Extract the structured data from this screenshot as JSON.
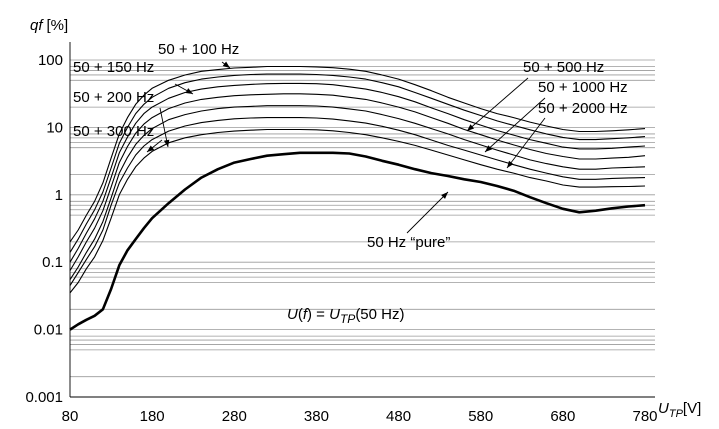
{
  "chart_data": {
    "type": "line",
    "y_log_scale": true,
    "grid": "horizontal log grid",
    "xlim": [
      80,
      780
    ],
    "ylim": [
      0.001,
      100
    ],
    "x_ticks": [
      "80",
      "180",
      "280",
      "380",
      "480",
      "580",
      "680",
      "780"
    ],
    "y_ticks": [
      "0.001",
      "0.01",
      "0.1",
      "1",
      "10",
      "100"
    ],
    "ylabel": {
      "main": "qf",
      "unit": "[%]"
    },
    "xlabel": {
      "main": "U",
      "sub": "TP",
      "unit": "[V]"
    },
    "annotation": {
      "U": "U",
      "f_open": "(",
      "f": "f",
      "f_close": ")",
      "eq": " = ",
      "U2": "U",
      "sub": "TP",
      "rest": "(50 Hz)"
    },
    "x": [
      80,
      90,
      100,
      110,
      120,
      130,
      140,
      150,
      160,
      170,
      180,
      200,
      220,
      240,
      260,
      280,
      300,
      320,
      340,
      360,
      380,
      400,
      420,
      440,
      460,
      480,
      500,
      520,
      540,
      560,
      580,
      600,
      620,
      640,
      660,
      680,
      700,
      720,
      740,
      760,
      780
    ],
    "series": [
      {
        "name": "50 + 100 Hz",
        "values": [
          0.2,
          0.3,
          0.5,
          0.8,
          1.5,
          3.5,
          8.0,
          14.0,
          22.0,
          30.0,
          38.0,
          50.0,
          60.0,
          68.0,
          72.0,
          76.0,
          78.0,
          80.0,
          80.0,
          80.0,
          79.0,
          77.0,
          73.0,
          68.0,
          60.0,
          52.0,
          43.0,
          35.0,
          28.0,
          23.0,
          19.0,
          16.0,
          14.0,
          12.0,
          10.5,
          9.3,
          8.7,
          8.7,
          8.9,
          9.2,
          9.6
        ]
      },
      {
        "name": "50 + 150 Hz",
        "values": [
          0.14,
          0.22,
          0.37,
          0.6,
          1.1,
          2.5,
          5.8,
          10.0,
          16.0,
          22.0,
          28.0,
          38.0,
          46.0,
          52.0,
          56.0,
          59.0,
          61.0,
          62.0,
          62.0,
          62.0,
          61.0,
          59.0,
          56.0,
          52.0,
          46.0,
          40.0,
          33.0,
          27.0,
          22.0,
          18.0,
          15.0,
          12.5,
          10.7,
          9.2,
          8.0,
          7.1,
          6.6,
          6.6,
          6.8,
          7.0,
          7.3
        ]
      },
      {
        "name": "50 + 200 Hz",
        "values": [
          0.1,
          0.16,
          0.27,
          0.44,
          0.8,
          1.8,
          4.2,
          7.2,
          11.5,
          16.0,
          20.0,
          27.0,
          33.0,
          37.0,
          40.0,
          42.0,
          43.5,
          44.5,
          45.0,
          45.0,
          44.5,
          43.0,
          40.0,
          37.0,
          33.0,
          28.5,
          24.0,
          19.5,
          16.0,
          13.0,
          10.8,
          9.0,
          7.7,
          6.6,
          5.8,
          5.1,
          4.8,
          4.8,
          4.9,
          5.1,
          5.3
        ]
      },
      {
        "name": "50 + 300 Hz",
        "values": [
          0.075,
          0.12,
          0.2,
          0.32,
          0.58,
          1.3,
          3.0,
          5.2,
          8.2,
          11.2,
          14.0,
          19.0,
          23.0,
          26.0,
          28.0,
          29.5,
          30.5,
          31.0,
          31.5,
          31.5,
          31.0,
          30.0,
          28.0,
          26.0,
          23.0,
          20.0,
          17.0,
          14.0,
          11.5,
          9.3,
          7.8,
          6.5,
          5.5,
          4.7,
          4.1,
          3.7,
          3.4,
          3.4,
          3.5,
          3.6,
          3.8
        ]
      },
      {
        "name": "50 + 500 Hz",
        "values": [
          0.055,
          0.085,
          0.14,
          0.22,
          0.4,
          0.9,
          2.1,
          3.6,
          5.6,
          7.6,
          9.6,
          13.0,
          15.5,
          17.5,
          19.0,
          20.0,
          20.5,
          21.0,
          21.0,
          21.0,
          20.8,
          20.0,
          18.8,
          17.5,
          15.5,
          13.5,
          11.5,
          9.6,
          8.0,
          6.6,
          5.5,
          4.6,
          3.9,
          3.3,
          2.9,
          2.6,
          2.4,
          2.4,
          2.5,
          2.55,
          2.6
        ]
      },
      {
        "name": "50 + 1000 Hz",
        "values": [
          0.045,
          0.07,
          0.11,
          0.17,
          0.3,
          0.7,
          1.5,
          2.5,
          3.9,
          5.3,
          6.6,
          8.8,
          10.5,
          11.8,
          12.7,
          13.4,
          13.8,
          14.0,
          14.0,
          14.0,
          13.8,
          13.3,
          12.5,
          11.6,
          10.4,
          9.1,
          7.8,
          6.5,
          5.4,
          4.6,
          3.9,
          3.3,
          2.8,
          2.4,
          2.1,
          1.85,
          1.7,
          1.7,
          1.75,
          1.78,
          1.8
        ]
      },
      {
        "name": "50 + 2000 Hz",
        "values": [
          0.035,
          0.05,
          0.08,
          0.12,
          0.21,
          0.45,
          1.0,
          1.7,
          2.6,
          3.5,
          4.4,
          5.9,
          7.0,
          7.8,
          8.4,
          8.8,
          9.1,
          9.3,
          9.3,
          9.3,
          9.2,
          8.9,
          8.4,
          7.8,
          7.0,
          6.2,
          5.4,
          4.6,
          3.9,
          3.3,
          2.8,
          2.4,
          2.1,
          1.8,
          1.6,
          1.4,
          1.3,
          1.3,
          1.32,
          1.33,
          1.35
        ]
      },
      {
        "name": "50 Hz “pure”",
        "values": [
          0.01,
          0.012,
          0.014,
          0.016,
          0.02,
          0.04,
          0.09,
          0.15,
          0.22,
          0.32,
          0.45,
          0.75,
          1.2,
          1.8,
          2.4,
          3.0,
          3.4,
          3.8,
          4.0,
          4.2,
          4.2,
          4.2,
          4.1,
          3.7,
          3.2,
          2.8,
          2.4,
          2.1,
          1.9,
          1.7,
          1.55,
          1.35,
          1.15,
          0.92,
          0.75,
          0.62,
          0.55,
          0.58,
          0.63,
          0.67,
          0.7
        ]
      }
    ],
    "labels": [
      {
        "text": "50 + 100 Hz",
        "series": 0
      },
      {
        "text": "50 + 150 Hz",
        "series": 1
      },
      {
        "text": "50 + 200 Hz",
        "series": 2
      },
      {
        "text": "50 + 300 Hz",
        "series": 3
      },
      {
        "text": "50 + 500 Hz",
        "series": 4
      },
      {
        "text": "50 + 1000 Hz",
        "series": 5
      },
      {
        "text": "50 + 2000 Hz",
        "series": 6
      },
      {
        "text": "50 Hz “pure”",
        "series": 7
      }
    ]
  }
}
